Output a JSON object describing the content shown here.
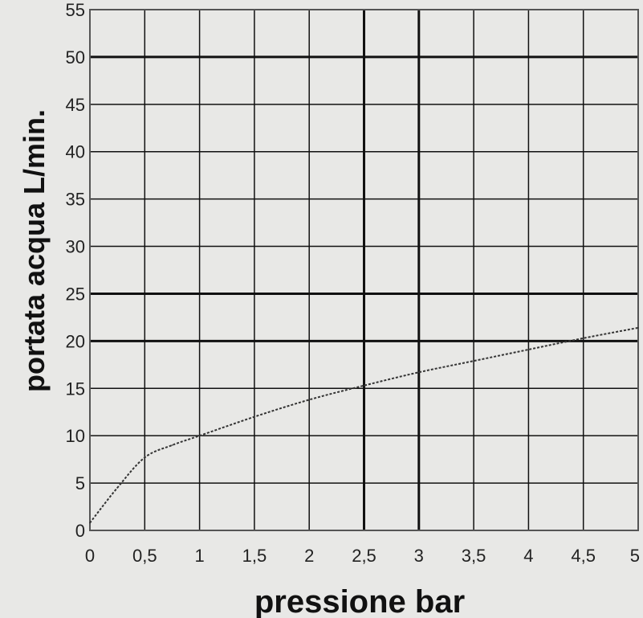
{
  "chart_data": {
    "type": "line",
    "title": "",
    "xlabel": "pressione bar",
    "ylabel": "portata acqua  L/min.",
    "xlim": [
      0,
      5
    ],
    "ylim": [
      0,
      55
    ],
    "x_ticks": [
      0,
      0.5,
      1,
      1.5,
      2,
      2.5,
      3,
      3.5,
      4,
      4.5,
      5
    ],
    "x_tick_labels": [
      "0",
      "0,5",
      "1",
      "1,5",
      "2",
      "2,5",
      "3",
      "3,5",
      "4",
      "4,5",
      "5"
    ],
    "y_ticks": [
      0,
      5,
      10,
      15,
      20,
      25,
      30,
      35,
      40,
      45,
      50,
      55
    ],
    "y_tick_labels": [
      "0",
      "5",
      "10",
      "15",
      "20",
      "25",
      "30",
      "35",
      "40",
      "45",
      "50",
      "55"
    ],
    "x_gridlines_bold": [
      2.5,
      3
    ],
    "y_gridlines_bold": [
      20,
      25,
      50
    ],
    "grid": true,
    "line_style": "dotted",
    "series": [
      {
        "x": [
          0,
          0.25,
          0.5,
          0.75,
          1,
          1.5,
          2,
          2.5,
          3,
          3.5,
          4,
          4.5,
          5
        ],
        "y": [
          0.8,
          4.5,
          7.7,
          9.0,
          10.0,
          12.0,
          13.8,
          15.3,
          16.7,
          17.9,
          19.1,
          20.3,
          21.4
        ]
      }
    ],
    "colors": {
      "background": "#e8e8e6",
      "grid": "#111111",
      "line": "#333333",
      "text": "#222222"
    }
  }
}
